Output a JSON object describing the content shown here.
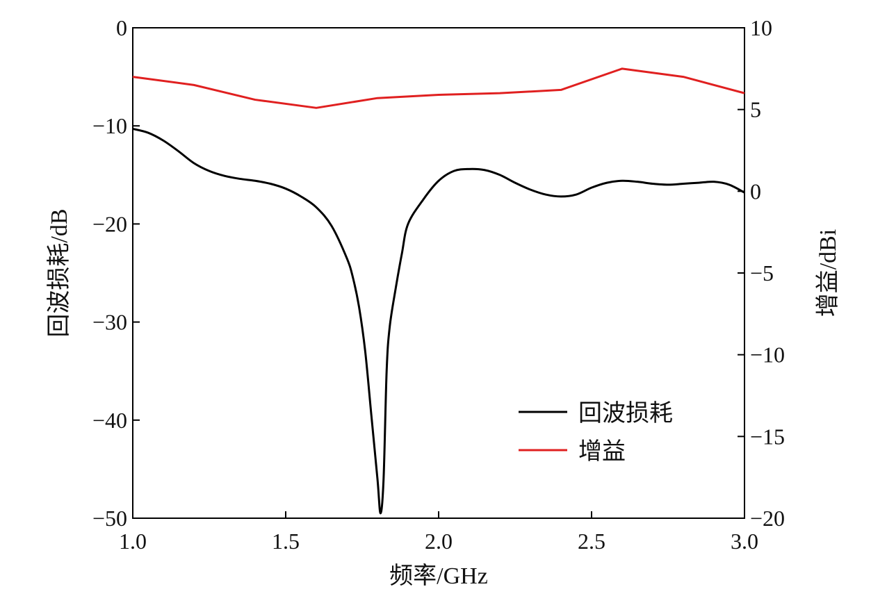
{
  "chart_data": {
    "type": "line",
    "xlabel": "频率/GHz",
    "ylabel_left": "回波损耗/dB",
    "ylabel_right": "增益/dBi",
    "xlim": [
      1.0,
      3.0
    ],
    "ylim_left": [
      -50,
      0
    ],
    "ylim_right": [
      -20,
      10
    ],
    "x_ticks": [
      "1.0",
      "1.5",
      "2.0",
      "2.5",
      "3.0"
    ],
    "y_ticks_left": [
      "0",
      "−10",
      "−20",
      "−30",
      "−40",
      "−50"
    ],
    "y_ticks_right": [
      "10",
      "5",
      "0",
      "−5",
      "−10",
      "−15",
      "−20"
    ],
    "grid": false,
    "legend_position": "lower-right",
    "series": [
      {
        "name": "回波损耗",
        "axis": "left",
        "color": "#000000",
        "x": [
          1.0,
          1.05,
          1.1,
          1.15,
          1.2,
          1.25,
          1.3,
          1.35,
          1.4,
          1.45,
          1.5,
          1.55,
          1.6,
          1.65,
          1.7,
          1.72,
          1.74,
          1.76,
          1.78,
          1.8,
          1.81,
          1.82,
          1.83,
          1.84,
          1.86,
          1.88,
          1.9,
          1.95,
          2.0,
          2.05,
          2.1,
          2.15,
          2.2,
          2.25,
          2.3,
          2.35,
          2.4,
          2.45,
          2.5,
          2.55,
          2.6,
          2.65,
          2.7,
          2.75,
          2.8,
          2.85,
          2.9,
          2.95,
          3.0
        ],
        "y": [
          -10.3,
          -10.7,
          -11.5,
          -12.6,
          -13.8,
          -14.6,
          -15.1,
          -15.4,
          -15.6,
          -15.9,
          -16.4,
          -17.2,
          -18.3,
          -20.2,
          -23.5,
          -25.5,
          -28.5,
          -33.0,
          -39.5,
          -46.0,
          -49.5,
          -46.0,
          -35.0,
          -30.5,
          -26.5,
          -23.0,
          -20.0,
          -17.5,
          -15.6,
          -14.6,
          -14.4,
          -14.5,
          -15.0,
          -15.8,
          -16.5,
          -17.0,
          -17.2,
          -17.0,
          -16.3,
          -15.8,
          -15.6,
          -15.7,
          -15.9,
          -16.0,
          -15.9,
          -15.8,
          -15.7,
          -16.0,
          -16.8
        ]
      },
      {
        "name": "增益",
        "axis": "right",
        "color": "#e02020",
        "x": [
          1.0,
          1.2,
          1.4,
          1.6,
          1.8,
          2.0,
          2.2,
          2.4,
          2.6,
          2.8,
          3.0
        ],
        "y": [
          7.0,
          6.5,
          5.6,
          5.1,
          5.7,
          5.9,
          6.0,
          6.2,
          7.5,
          7.0,
          6.0
        ]
      }
    ]
  }
}
